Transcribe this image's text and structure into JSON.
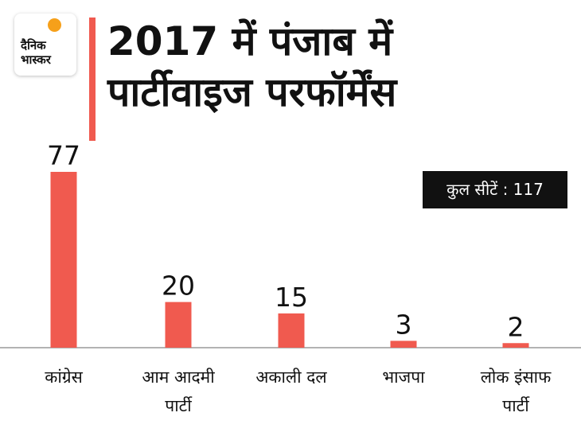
{
  "logo": {
    "line1": "दैनिक",
    "line2": "भास्कर"
  },
  "title_line1": "2017 में पंजाब में",
  "title_line2": "पार्टीवाइज परफॉर्मेंस",
  "total_seats": "कुल सीटें : 117",
  "colors": {
    "bar": "#f05a4f",
    "accent": "#f05a4f",
    "text": "#111111",
    "box": "#111111"
  },
  "chart_data": {
    "type": "bar",
    "title": "2017 में पंजाब में पार्टीवाइज परफॉर्मेंस",
    "categories": [
      "कांग्रेस",
      "आम आदमी पार्टी",
      "अकाली दल",
      "भाजपा",
      "लोक इंसाफ पार्टी"
    ],
    "category_lines": [
      [
        "कांग्रेस"
      ],
      [
        "आम आदमी",
        "पार्टी"
      ],
      [
        "अकाली दल"
      ],
      [
        "भाजपा"
      ],
      [
        "लोक इंसाफ",
        "पार्टी"
      ]
    ],
    "values": [
      77,
      20,
      15,
      3,
      2
    ],
    "data_labels": [
      "77",
      "20",
      "15",
      "3",
      "2"
    ],
    "ylim": [
      0,
      77
    ],
    "grid": false,
    "legend": "none"
  }
}
